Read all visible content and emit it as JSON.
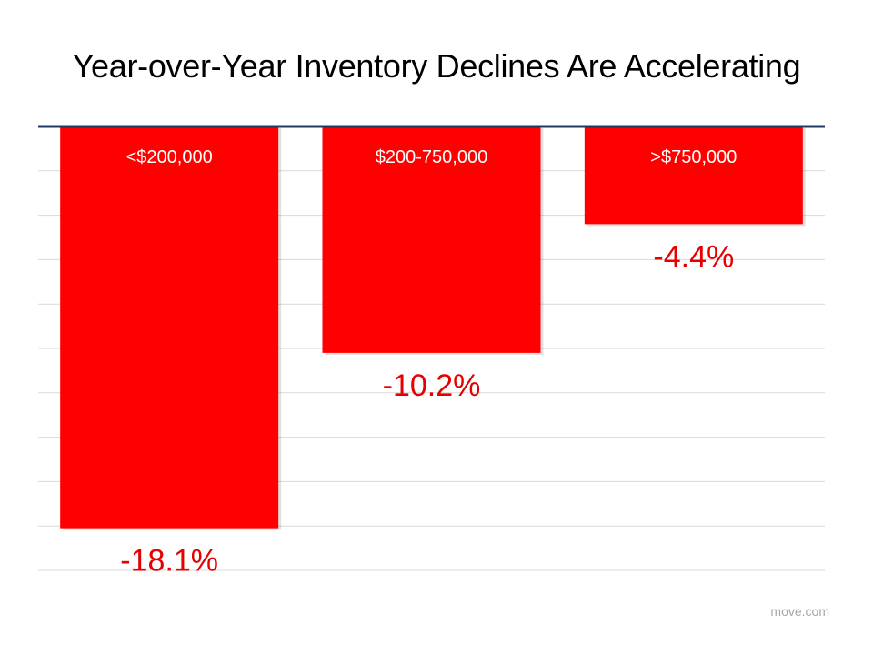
{
  "chart_data": {
    "type": "bar",
    "title": "Year-over-Year Inventory Declines Are Accelerating",
    "categories": [
      "<$200,000",
      "$200-750,000",
      ">$750,000"
    ],
    "values": [
      -18.1,
      -10.2,
      -4.4
    ],
    "value_labels": [
      "-18.1%",
      "-10.2%",
      "-4.4%"
    ],
    "ylim": [
      -20,
      0
    ],
    "grid": true,
    "xlabel": "",
    "ylabel": ""
  },
  "colors": {
    "bar": "#ff0000",
    "value_label": "#e60000",
    "baseline": "#1f3864",
    "grid": "#d9d9d9"
  },
  "source": "move.com"
}
